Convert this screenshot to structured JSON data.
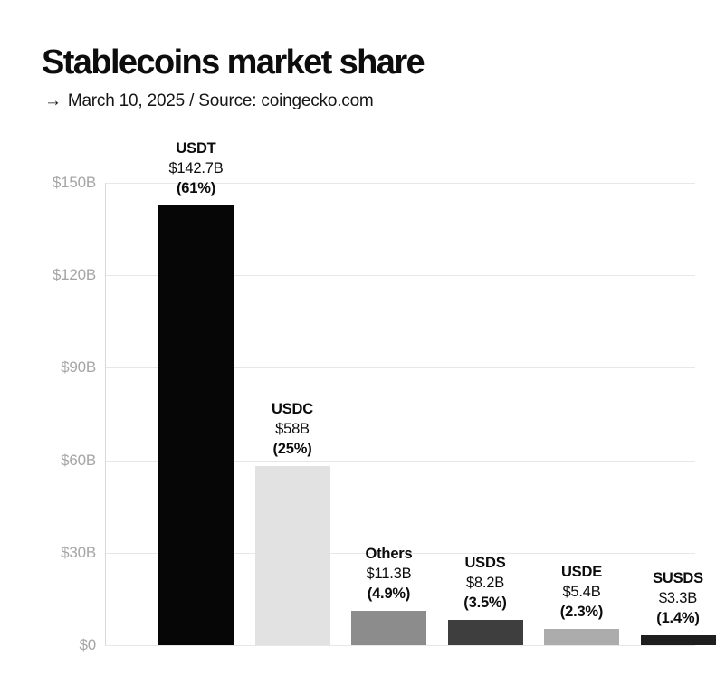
{
  "header": {
    "title": "Stablecoins market share",
    "subtitle_arrow": "→",
    "subtitle_text": "March 10, 2025 / Source: coingecko.com"
  },
  "chart_data": {
    "type": "bar",
    "title": "Stablecoins market share",
    "subtitle": "→ March 10, 2025 / Source: coingecko.com",
    "unit": "USD billions",
    "categories": [
      "USDT",
      "USDC",
      "Others",
      "USDS",
      "USDE",
      "SUSDS"
    ],
    "values": [
      142.7,
      58,
      11.3,
      8.2,
      5.4,
      3.3
    ],
    "value_labels": [
      "$142.7B",
      "$58B",
      "$11.3B",
      "$8.2B",
      "$5.4B",
      "$3.3B"
    ],
    "percent_labels": [
      "(61%)",
      "(25%)",
      "(4.9%)",
      "(3.5%)",
      "(2.3%)",
      "(1.4%)"
    ],
    "bar_colors": [
      "#060606",
      "#e2e2e2",
      "#8c8c8c",
      "#3e3e3e",
      "#acacac",
      "#1e1e1e"
    ],
    "xlabel": "",
    "ylabel": "",
    "ylim": [
      0,
      150
    ],
    "yticks": [
      0,
      30,
      60,
      90,
      120,
      150
    ],
    "ytick_labels": [
      "$0",
      "$30B",
      "$60B",
      "$90B",
      "$120B",
      "$150B"
    ],
    "grid": true,
    "legend": false,
    "colors": {
      "background": "#ffffff",
      "gridline": "#e7e7e7",
      "axis_line": "#d8d8d8",
      "tick_label": "#a5a5a5",
      "text": "#0d0d0d"
    }
  }
}
